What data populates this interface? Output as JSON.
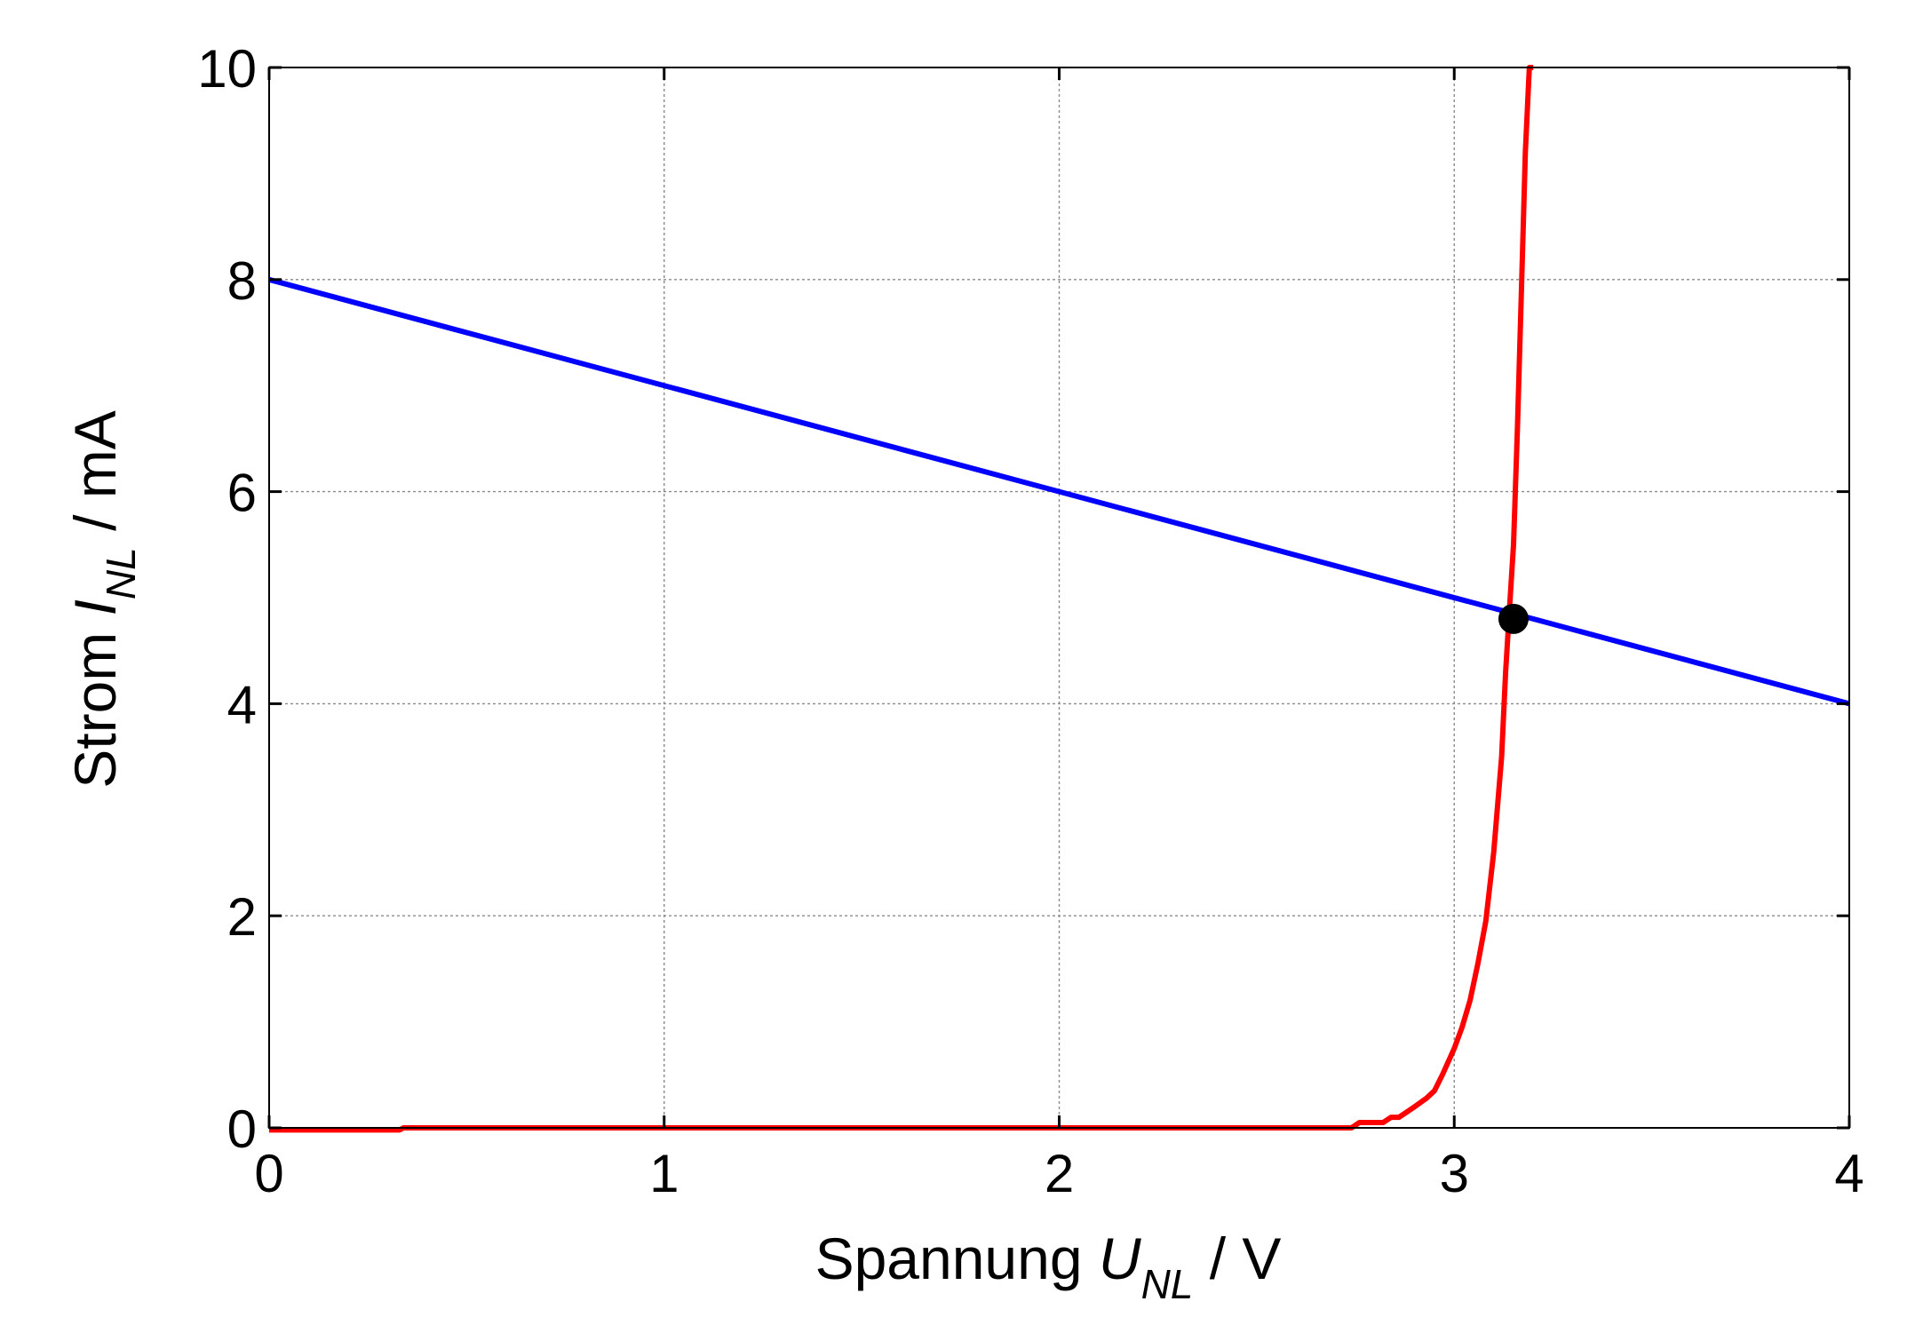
{
  "chart_data": {
    "type": "line",
    "title": "",
    "xlabel": {
      "prefix": "Spannung ",
      "symbol": "U",
      "subscript": "NL",
      "unit": " / V"
    },
    "ylabel": {
      "prefix": "Strom ",
      "symbol": "I",
      "subscript": "NL",
      "unit": " / mA"
    },
    "xlim": [
      0,
      4
    ],
    "ylim": [
      0,
      10
    ],
    "xticks": [
      0,
      1,
      2,
      3,
      4
    ],
    "yticks": [
      0,
      2,
      4,
      6,
      8,
      10
    ],
    "xtick_labels": [
      "0",
      "1",
      "2",
      "3",
      "4"
    ],
    "ytick_labels": [
      "0",
      "2",
      "4",
      "6",
      "8",
      "10"
    ],
    "grid": true,
    "series": [
      {
        "color": "#0000ff",
        "x": [
          0,
          4
        ],
        "y": [
          8,
          4
        ]
      },
      {
        "color": "#ff0000",
        "x": [
          0,
          0.33,
          0.34,
          2.74,
          2.76,
          2.82,
          2.84,
          2.86,
          2.88,
          2.9,
          2.93,
          2.95,
          2.97,
          3.0,
          3.02,
          3.04,
          3.06,
          3.08,
          3.1,
          3.12,
          3.13,
          3.14,
          3.15,
          3.16,
          3.17,
          3.18,
          3.19,
          3.2
        ],
        "y": [
          -0.02,
          -0.02,
          0.0,
          0.0,
          0.05,
          0.05,
          0.1,
          0.1,
          0.15,
          0.2,
          0.28,
          0.35,
          0.5,
          0.75,
          0.95,
          1.2,
          1.55,
          1.95,
          2.6,
          3.5,
          4.3,
          4.9,
          5.5,
          6.6,
          7.9,
          9.2,
          10.0,
          10.0
        ]
      }
    ],
    "annotations": [
      {
        "type": "point",
        "x": 3.15,
        "y": 4.8,
        "color": "#000000"
      }
    ]
  }
}
